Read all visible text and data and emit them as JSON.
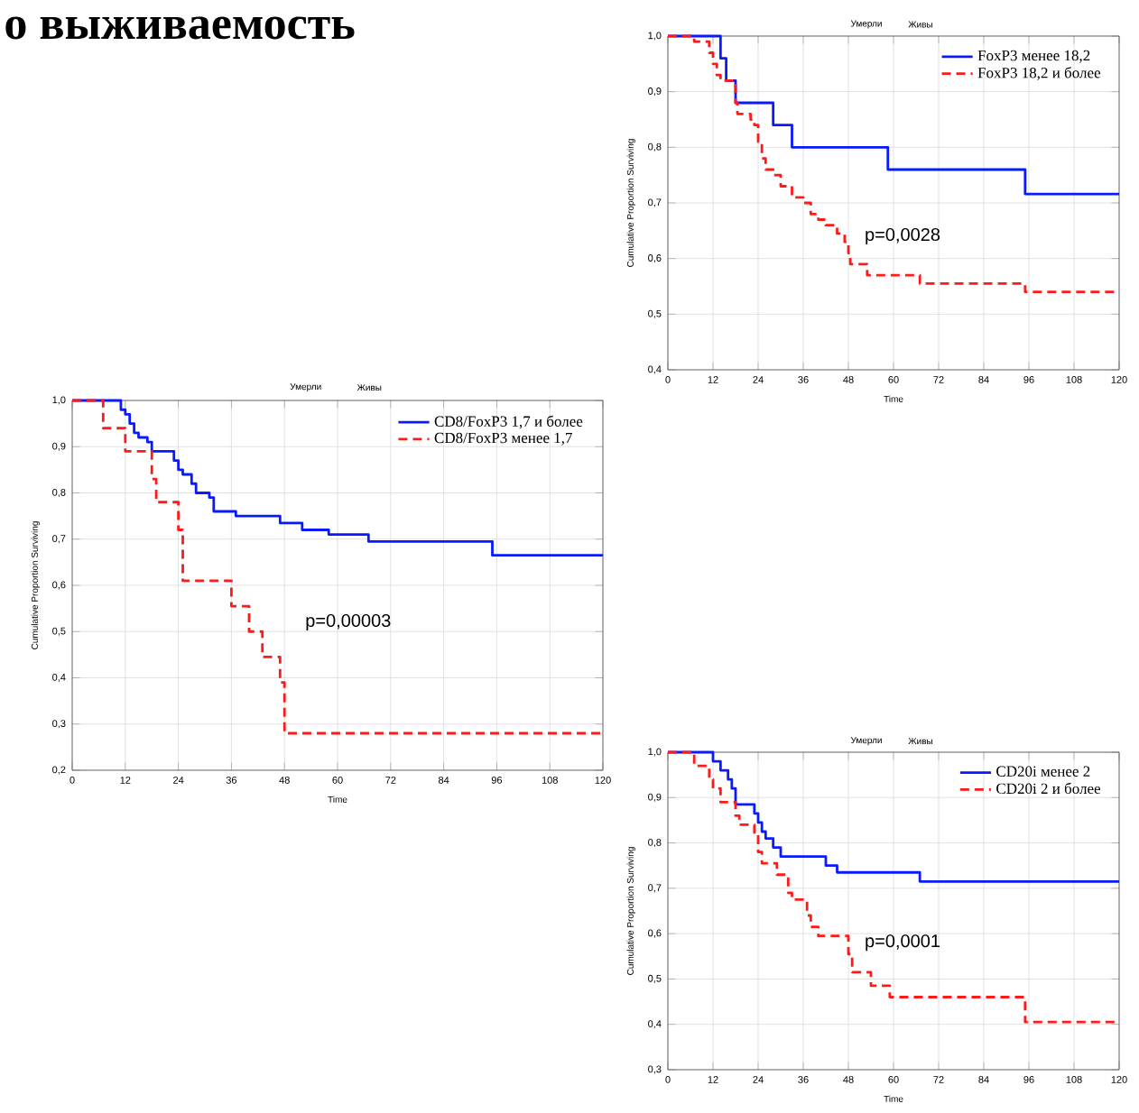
{
  "chart_data": [
    {
      "type": "step",
      "xlabel": "Time",
      "ylabel": "Cumulative Proportion Surviving",
      "xlim": [
        0,
        120
      ],
      "ylim": [
        0.4,
        1.0
      ],
      "xticks": [
        0,
        12,
        24,
        36,
        48,
        60,
        72,
        84,
        96,
        108,
        120
      ],
      "yticks": [
        {
          "value": 0.4,
          "label": "0,4"
        },
        {
          "value": 0.5,
          "label": "0,5"
        },
        {
          "value": 0.6,
          "label": "0,6"
        },
        {
          "value": 0.7,
          "label": "0,7"
        },
        {
          "value": 0.8,
          "label": "0,8"
        },
        {
          "value": 0.9,
          "label": "0,9"
        },
        {
          "value": 1.0,
          "label": "1,0"
        }
      ],
      "grid": true,
      "legend": "top right",
      "annotations": [
        "Умерли",
        "Живы",
        "p=0,0028"
      ],
      "series": [
        {
          "name": "FoxP3 менее 18,2",
          "color": "#0a1aff",
          "line_style": "solid",
          "x": [
            0,
            14,
            15.5,
            18,
            28,
            33,
            58.5,
            95,
            120
          ],
          "values": [
            1,
            0.96,
            0.92,
            0.88,
            0.84,
            0.8,
            0.76,
            0.716,
            0.716
          ]
        },
        {
          "name": "FoxP3 18,2 и более",
          "color": "#ff1a1a",
          "line_style": "dashed",
          "x": [
            0,
            7,
            11,
            12,
            13,
            14,
            18,
            18.5,
            22,
            23,
            24,
            25,
            26,
            28,
            30,
            33,
            36,
            38,
            40,
            42,
            45,
            47,
            48,
            48.5,
            53,
            67,
            95,
            120
          ],
          "values": [
            1,
            0.99,
            0.97,
            0.95,
            0.93,
            0.92,
            0.88,
            0.86,
            0.85,
            0.84,
            0.81,
            0.78,
            0.76,
            0.75,
            0.73,
            0.71,
            0.7,
            0.68,
            0.67,
            0.66,
            0.645,
            0.63,
            0.61,
            0.59,
            0.57,
            0.555,
            0.54,
            0.54
          ]
        }
      ]
    },
    {
      "type": "step",
      "title": "о выживаемость",
      "xlabel": "Time",
      "ylabel": "Cumulative Proportion Surviving",
      "xlim": [
        0,
        120
      ],
      "ylim": [
        0.2,
        1.0
      ],
      "xticks": [
        0,
        12,
        24,
        36,
        48,
        60,
        72,
        84,
        96,
        108,
        120
      ],
      "yticks": [
        {
          "value": 0.2,
          "label": "0,2"
        },
        {
          "value": 0.3,
          "label": "0,3"
        },
        {
          "value": 0.4,
          "label": "0,4"
        },
        {
          "value": 0.5,
          "label": "0,5"
        },
        {
          "value": 0.6,
          "label": "0,6"
        },
        {
          "value": 0.7,
          "label": "0,7"
        },
        {
          "value": 0.8,
          "label": "0,8"
        },
        {
          "value": 0.9,
          "label": "0,9"
        },
        {
          "value": 1.0,
          "label": "1,0"
        }
      ],
      "grid": true,
      "legend": "top right",
      "annotations": [
        "Умерли",
        "Живы",
        "p=0,00003"
      ],
      "series": [
        {
          "name": "CD8/FoxP3 1,7 и более",
          "color": "#0a1aff",
          "line_style": "solid",
          "x": [
            0,
            11,
            12,
            13,
            14,
            15,
            17,
            18,
            23,
            24,
            25,
            27,
            28,
            31,
            32,
            37,
            47,
            52,
            58,
            67,
            95,
            120
          ],
          "values": [
            1,
            0.98,
            0.97,
            0.95,
            0.93,
            0.92,
            0.91,
            0.89,
            0.87,
            0.85,
            0.84,
            0.82,
            0.8,
            0.79,
            0.76,
            0.75,
            0.735,
            0.72,
            0.71,
            0.695,
            0.665,
            0.665
          ]
        },
        {
          "name": "CD8/FoxP3  менее 1,7",
          "color": "#ff1a1a",
          "line_style": "dashed",
          "x": [
            0,
            7,
            12,
            18,
            19,
            24,
            25,
            36,
            40,
            43,
            47,
            48,
            120
          ],
          "values": [
            1,
            0.94,
            0.89,
            0.83,
            0.78,
            0.72,
            0.61,
            0.555,
            0.5,
            0.445,
            0.39,
            0.28,
            0.28
          ]
        }
      ]
    },
    {
      "type": "step",
      "xlabel": "Time",
      "ylabel": "Cumulative Proportion Surviving",
      "xlim": [
        0,
        120
      ],
      "ylim": [
        0.3,
        1.0
      ],
      "xticks": [
        0,
        12,
        24,
        36,
        48,
        60,
        72,
        84,
        96,
        108,
        120
      ],
      "yticks": [
        {
          "value": 0.3,
          "label": "0,3"
        },
        {
          "value": 0.4,
          "label": "0,4"
        },
        {
          "value": 0.5,
          "label": "0,5"
        },
        {
          "value": 0.6,
          "label": "0,6"
        },
        {
          "value": 0.7,
          "label": "0,7"
        },
        {
          "value": 0.8,
          "label": "0,8"
        },
        {
          "value": 0.9,
          "label": "0,9"
        },
        {
          "value": 1.0,
          "label": "1,0"
        }
      ],
      "grid": true,
      "legend": "top right",
      "annotations": [
        "Умерли",
        "Живы",
        "p=0,0001"
      ],
      "series": [
        {
          "name": "CD20i менее 2",
          "color": "#0a1aff",
          "line_style": "solid",
          "x": [
            0,
            12,
            14,
            16,
            17,
            18,
            23,
            24,
            25,
            26,
            28,
            30,
            42,
            45,
            67,
            120
          ],
          "values": [
            1,
            0.98,
            0.96,
            0.94,
            0.92,
            0.885,
            0.865,
            0.845,
            0.825,
            0.81,
            0.79,
            0.77,
            0.75,
            0.735,
            0.715,
            0.715
          ]
        },
        {
          "name": "CD20i 2 и более",
          "color": "#ff1a1a",
          "line_style": "dashed",
          "x": [
            0,
            7,
            11,
            12,
            14,
            18,
            19,
            23,
            24,
            25,
            29,
            32,
            33,
            37,
            38,
            40,
            48,
            49,
            54,
            59,
            95,
            120
          ],
          "values": [
            1,
            0.97,
            0.94,
            0.92,
            0.89,
            0.86,
            0.84,
            0.82,
            0.78,
            0.755,
            0.73,
            0.69,
            0.675,
            0.64,
            0.615,
            0.595,
            0.555,
            0.515,
            0.485,
            0.46,
            0.405,
            0.405
          ]
        }
      ]
    }
  ]
}
